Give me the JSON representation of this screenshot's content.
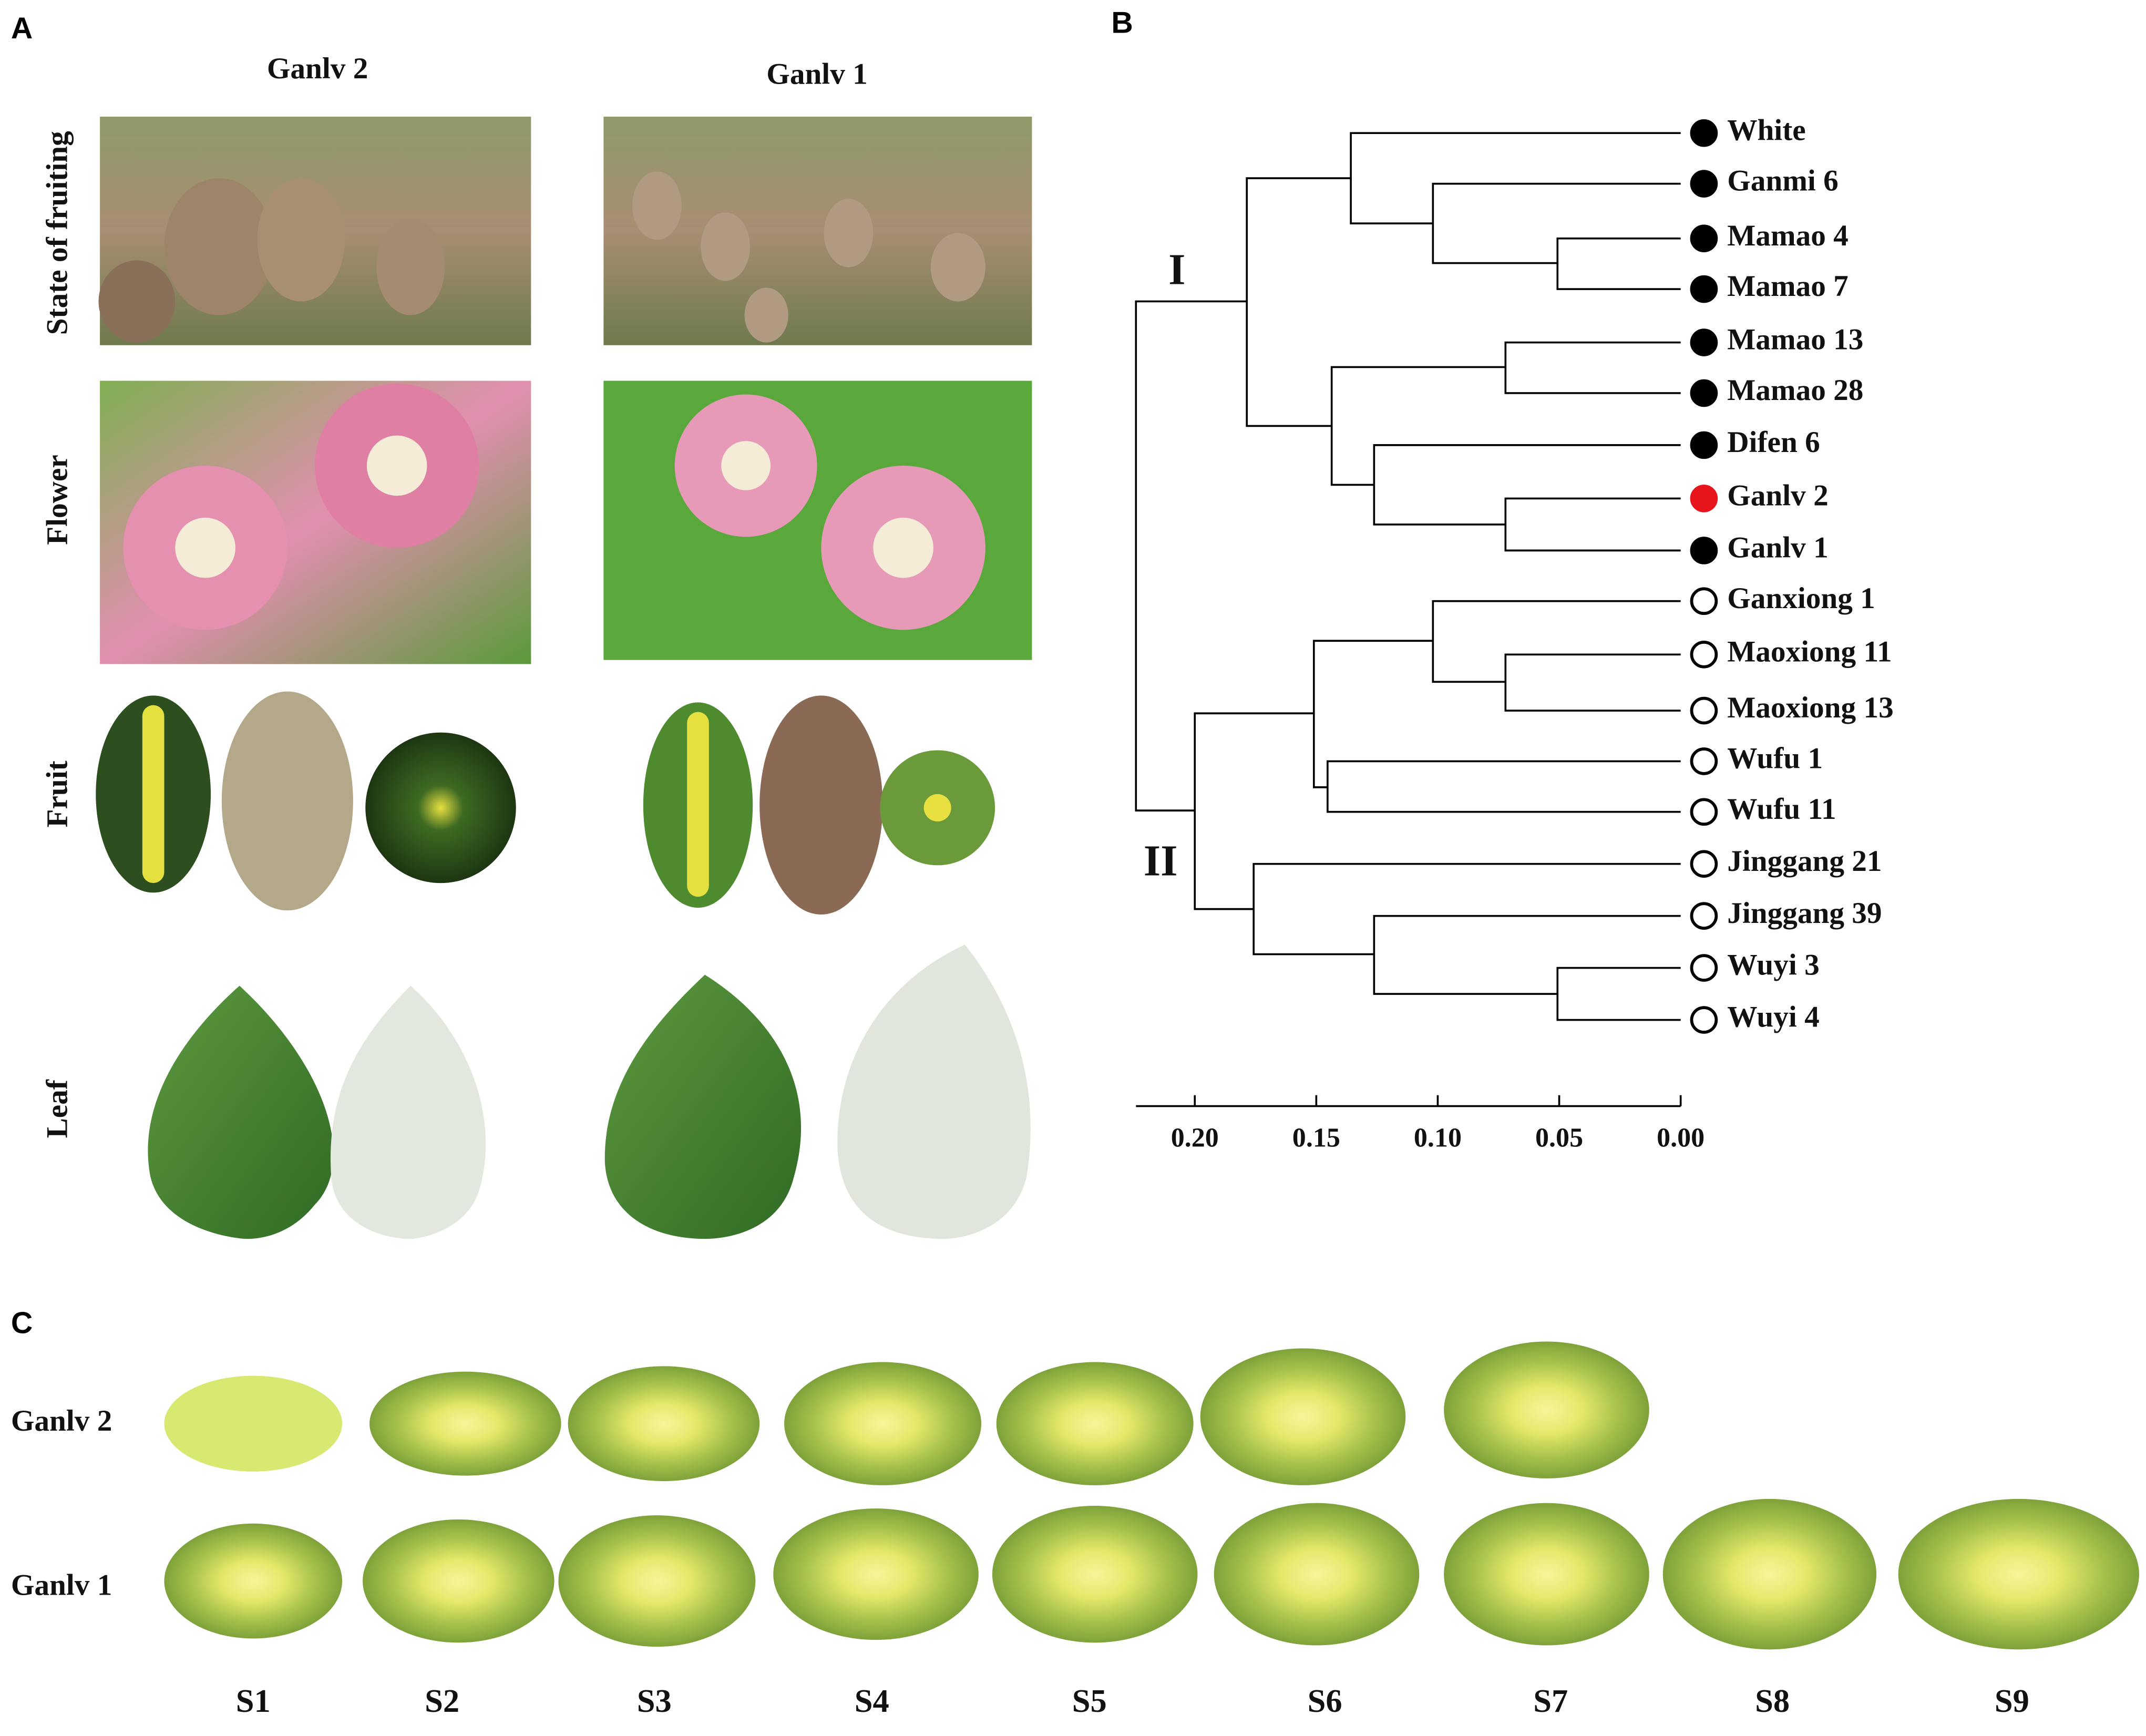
{
  "panel_A": {
    "label": "A",
    "columns": [
      "Ganlv 2",
      "Ganlv 1"
    ],
    "rows": [
      "State of fruiting",
      "Flower",
      "Fruit",
      "Leaf"
    ]
  },
  "panel_B": {
    "label": "B",
    "clusters": [
      "I",
      "II"
    ],
    "leaves": [
      {
        "label": "White",
        "fill": "#000000"
      },
      {
        "label": "Ganmi 6",
        "fill": "#000000"
      },
      {
        "label": "Mamao 4",
        "fill": "#000000"
      },
      {
        "label": "Mamao 7",
        "fill": "#000000"
      },
      {
        "label": "Mamao 13",
        "fill": "#000000"
      },
      {
        "label": "Mamao 28",
        "fill": "#000000"
      },
      {
        "label": "Difen 6",
        "fill": "#000000"
      },
      {
        "label": "Ganlv 2",
        "fill": "#e8141b"
      },
      {
        "label": "Ganlv 1",
        "fill": "#000000"
      },
      {
        "label": "Ganxiong 1",
        "fill": "none"
      },
      {
        "label": "Maoxiong 11",
        "fill": "none"
      },
      {
        "label": "Maoxiong 13",
        "fill": "none"
      },
      {
        "label": "Wufu 1",
        "fill": "none"
      },
      {
        "label": "Wufu 11",
        "fill": "none"
      },
      {
        "label": "Jinggang 21",
        "fill": "none"
      },
      {
        "label": "Jinggang 39",
        "fill": "none"
      },
      {
        "label": "Wuyi 3",
        "fill": "none"
      },
      {
        "label": "Wuyi 4",
        "fill": "none"
      }
    ],
    "axis_ticks": [
      {
        "value": 0.2,
        "label": "0.20"
      },
      {
        "value": 0.15,
        "label": "0.15"
      },
      {
        "value": 0.1,
        "label": "0.10"
      },
      {
        "value": 0.05,
        "label": "0.05"
      },
      {
        "value": 0,
        "label": "0.00"
      }
    ]
  },
  "panel_C": {
    "label": "C",
    "rows": [
      "Ganlv 2",
      "Ganlv 1"
    ],
    "stages": [
      "S1",
      "S2",
      "S3",
      "S4",
      "S5",
      "S6",
      "S7",
      "S8",
      "S9"
    ]
  }
}
